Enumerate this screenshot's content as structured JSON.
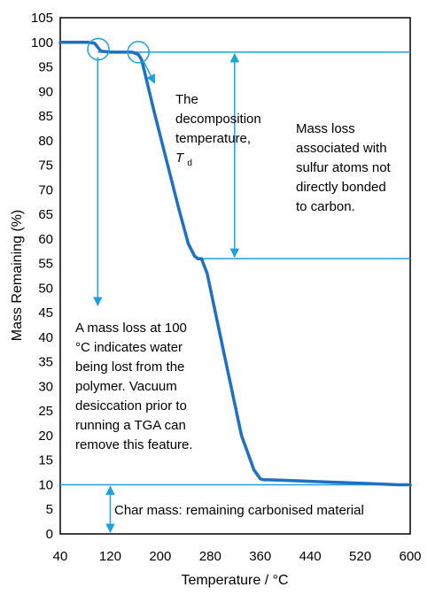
{
  "chart_data": {
    "type": "line",
    "title": "",
    "xlabel": "Temperature / °C",
    "ylabel": "Mass Remaining (%)",
    "xlim": [
      40,
      600
    ],
    "ylim": [
      0,
      105
    ],
    "x_ticks": [
      40,
      120,
      200,
      280,
      360,
      440,
      520,
      600
    ],
    "y_ticks": [
      0,
      5,
      10,
      15,
      20,
      25,
      30,
      35,
      40,
      45,
      50,
      55,
      60,
      65,
      70,
      75,
      80,
      85,
      90,
      95,
      100,
      105
    ],
    "grid": false,
    "legend": "none",
    "series": [
      {
        "color": "#1f6fc5",
        "x": [
          40,
          85,
          95,
          100,
          105,
          120,
          140,
          155,
          165,
          170,
          175,
          190,
          210,
          230,
          245,
          255,
          260,
          266,
          275,
          290,
          310,
          330,
          350,
          360,
          366,
          372,
          400,
          440,
          480,
          520,
          560,
          580,
          600
        ],
        "y": [
          100,
          100,
          99.8,
          99,
          98.2,
          98,
          98,
          98,
          97.5,
          96.5,
          94,
          86,
          76,
          66,
          59,
          56.5,
          56,
          56,
          53,
          44,
          32,
          20,
          13,
          11.2,
          11,
          11,
          10.9,
          10.7,
          10.5,
          10.3,
          10.1,
          10,
          10
        ]
      }
    ],
    "reference_lines": {
      "color": "#1ba1e2",
      "levels": [
        98,
        56,
        10
      ]
    },
    "annotations": [
      {
        "id": "decomposition",
        "lines": [
          "The",
          "decomposition",
          "temperature,"
        ],
        "symbol": "T",
        "subscript": "d"
      },
      {
        "id": "sulfur-loss",
        "lines": [
          "Mass loss",
          "associated with",
          "sulfur atoms not",
          "directly bonded",
          "to carbon."
        ]
      },
      {
        "id": "water-loss",
        "lines": [
          "A mass loss at 100",
          "°C indicates water",
          "being lost from the",
          "polymer. Vacuum",
          "desiccation prior to",
          "running a TGA can",
          "remove this feature."
        ]
      },
      {
        "id": "char-mass",
        "lines": [
          "Char mass: remaining carbonised material"
        ]
      }
    ]
  }
}
